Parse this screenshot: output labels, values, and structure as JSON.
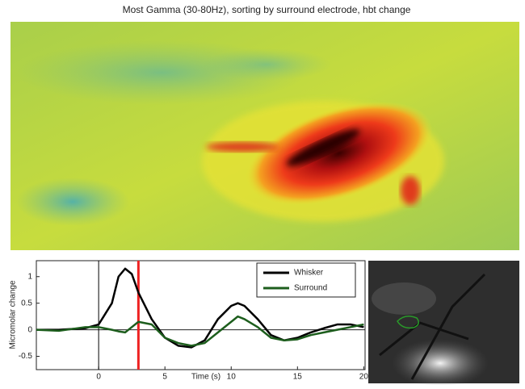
{
  "figure_title": "Most Gamma (30-80Hz), sorting by surround electrode, hbt change",
  "chart_data": {
    "type": "line",
    "xlabel": "Time (s)",
    "ylabel": "Micromolar change",
    "xlim": [
      -4.7,
      20.1
    ],
    "ylim": [
      -0.75,
      1.3
    ],
    "xticks": [
      0,
      5,
      10,
      15,
      20
    ],
    "yticks": [
      -0.5,
      0,
      0.5,
      1
    ],
    "x": [
      -4.7,
      -3,
      -1,
      0,
      1,
      1.5,
      2,
      2.5,
      3,
      4,
      5,
      6,
      7,
      8,
      9,
      10,
      10.5,
      11,
      12,
      13,
      14,
      15,
      16,
      17,
      18,
      19,
      20
    ],
    "series": [
      {
        "name": "Whisker",
        "color": "#000000",
        "values": [
          0,
          0,
          0.03,
          0.1,
          0.5,
          1.0,
          1.15,
          1.05,
          0.7,
          0.2,
          -0.15,
          -0.3,
          -0.33,
          -0.2,
          0.2,
          0.45,
          0.5,
          0.45,
          0.2,
          -0.1,
          -0.2,
          -0.15,
          -0.05,
          0.03,
          0.1,
          0.1,
          0.05
        ]
      },
      {
        "name": "Surround",
        "color": "#1d5e1d",
        "values": [
          0,
          -0.02,
          0.05,
          0.05,
          0,
          -0.03,
          -0.05,
          0.05,
          0.15,
          0.1,
          -0.15,
          -0.25,
          -0.3,
          -0.25,
          -0.05,
          0.15,
          0.25,
          0.2,
          0.05,
          -0.15,
          -0.2,
          -0.18,
          -0.1,
          -0.05,
          0,
          0.05,
          0.1
        ]
      }
    ],
    "vlines": [
      {
        "value": 0,
        "color": "#000000"
      },
      {
        "value": 3,
        "color": "#ee2222"
      }
    ],
    "legend": "top-right"
  }
}
